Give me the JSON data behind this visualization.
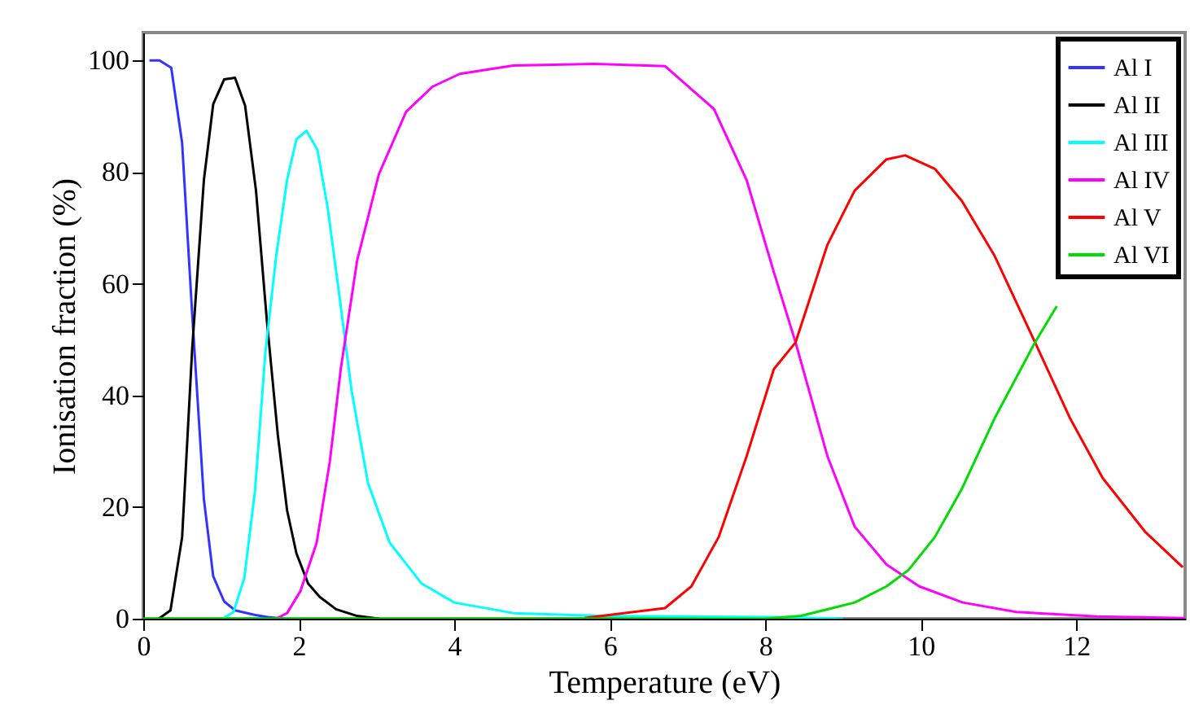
{
  "chart_data": {
    "type": "line",
    "xlabel": "Temperature (eV)",
    "ylabel": "Ionisation fraction (%)",
    "xlim": [
      0,
      13.4
    ],
    "ylim": [
      0,
      105
    ],
    "xticks": [
      0,
      2,
      4,
      6,
      8,
      10,
      12
    ],
    "yticks": [
      0,
      20,
      40,
      60,
      80,
      100
    ],
    "grid": false,
    "legend": "top right",
    "marker": "none",
    "line_style": "solid",
    "series": [
      {
        "name": "Al I",
        "color": "#3333ff",
        "x": [
          0.08,
          0.21,
          0.36,
          0.5,
          0.63,
          0.78,
          0.9,
          1.04,
          1.18,
          1.43,
          1.6,
          1.8
        ],
        "values": [
          100,
          100,
          98.7,
          85.2,
          54.4,
          21.4,
          7.6,
          3.1,
          1.5,
          0.7,
          0.3,
          0
        ]
      },
      {
        "name": "Al II",
        "color": "#000000",
        "x": [
          0.2,
          0.35,
          0.5,
          0.63,
          0.78,
          0.9,
          1.04,
          1.18,
          1.31,
          1.45,
          1.59,
          1.73,
          1.85,
          1.97,
          2.12,
          2.27,
          2.48,
          2.75,
          3.03
        ],
        "values": [
          0,
          1.5,
          14.6,
          48.5,
          78.6,
          92.2,
          96.6,
          96.9,
          91.9,
          76.7,
          53.4,
          33,
          19.4,
          11.7,
          6.3,
          3.9,
          1.7,
          0.5,
          0
        ]
      },
      {
        "name": "Al III",
        "color": "#00ffff",
        "x": [
          1.02,
          1.16,
          1.3,
          1.44,
          1.57,
          1.71,
          1.85,
          1.97,
          2.1,
          2.24,
          2.37,
          2.51,
          2.68,
          2.89,
          3.17,
          3.58,
          4.0,
          4.76,
          5.87,
          8.0,
          9.0
        ],
        "values": [
          0,
          1.2,
          7.3,
          23.3,
          47.6,
          65,
          78.6,
          85.9,
          87.4,
          84,
          73.8,
          59.2,
          40.8,
          24.3,
          13.6,
          6.3,
          2.9,
          1,
          0.5,
          0.3,
          0
        ]
      },
      {
        "name": "Al IV",
        "color": "#ff00ff",
        "x": [
          1.71,
          1.85,
          2.02,
          2.23,
          2.4,
          2.54,
          2.75,
          3.03,
          3.38,
          3.72,
          4.07,
          4.76,
          5.8,
          6.71,
          7.34,
          7.76,
          8.11,
          8.39,
          8.8,
          9.15,
          9.56,
          9.98,
          10.54,
          11.23,
          12.27,
          13.4
        ],
        "values": [
          0,
          1,
          4.9,
          13.6,
          28.2,
          44.7,
          64.1,
          79.6,
          90.8,
          95.3,
          97.6,
          99.1,
          99.4,
          99,
          91.3,
          78.6,
          62.1,
          49.5,
          29.1,
          16.5,
          9.7,
          5.8,
          2.9,
          1.2,
          0.4,
          0.1
        ]
      },
      {
        "name": "Al V",
        "color": "#ff0000",
        "x": [
          5.67,
          6.71,
          7.05,
          7.4,
          7.76,
          8.11,
          8.39,
          8.8,
          9.15,
          9.56,
          9.8,
          10.18,
          10.53,
          10.95,
          11.47,
          11.92,
          12.34,
          12.89,
          13.37
        ],
        "values": [
          0.1,
          1.9,
          5.8,
          14.6,
          29.1,
          44.7,
          49.5,
          67,
          76.7,
          82.3,
          83,
          80.6,
          74.8,
          65,
          49.5,
          35.9,
          25.2,
          15.5,
          9.2
        ]
      },
      {
        "name": "Al VI",
        "color": "#00dd00",
        "x": [
          0,
          8.0,
          8.46,
          9.15,
          9.56,
          9.84,
          10.18,
          10.53,
          10.95,
          11.47,
          11.75
        ],
        "values": [
          0,
          0,
          0.5,
          2.9,
          5.8,
          8.7,
          14.6,
          23.3,
          35.9,
          49.5,
          56
        ]
      }
    ]
  }
}
